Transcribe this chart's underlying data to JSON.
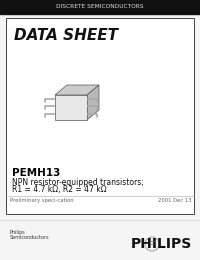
{
  "bg_color": "#f5f5f5",
  "header_bg": "#111111",
  "header_text": "DISCRETE SEMICONDUCTORS",
  "header_text_color": "#dddddd",
  "header_fontsize": 4.2,
  "datasheet_title": "DATA SHEET",
  "datasheet_title_fontsize": 11,
  "part_number": "PEMH13",
  "part_number_fontsize": 7.5,
  "description_line1": "NPN resistor-equipped transistors;",
  "description_line2": "R1 = 4.7 kΩ, R2 = 47 kΩ",
  "description_fontsize": 5.5,
  "prelim_text": "Preliminary speci­cation",
  "date_text": "2001 Dec 13",
  "footer_fontsize": 3.8,
  "philips_text": "PHILIPS",
  "philips_fontsize": 10,
  "philips_sub1": "Philips",
  "philips_sub2": "Semiconductors",
  "philips_sub_fontsize": 3.5,
  "outer_border_color": "#999999",
  "inner_border_color": "#444444"
}
